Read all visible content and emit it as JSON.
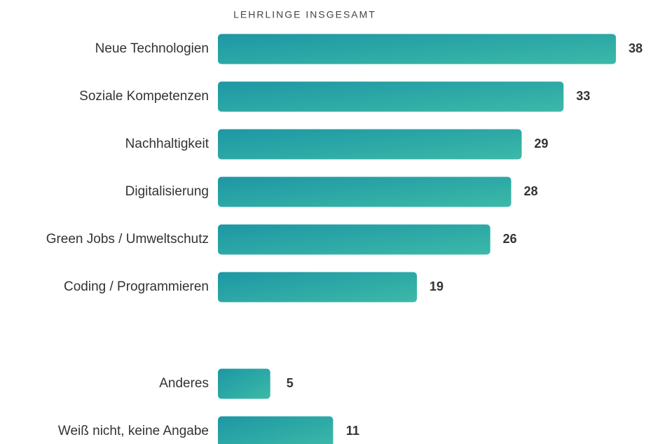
{
  "chart_data": {
    "type": "bar",
    "orientation": "horizontal",
    "title": "LEHRLINGE INSGESAMT",
    "categories": [
      "Neue Technologien",
      "Soziale Kompetenzen",
      "Nachhaltigkeit",
      "Digitalisierung",
      "Green Jobs / Umweltschutz",
      "Coding / Programmieren",
      "Anderes",
      "Weiß nicht, keine Angabe"
    ],
    "values": [
      38,
      33,
      29,
      28,
      26,
      19,
      5,
      11
    ],
    "color": [
      "#1d97a4",
      "#3cb9a8"
    ]
  }
}
